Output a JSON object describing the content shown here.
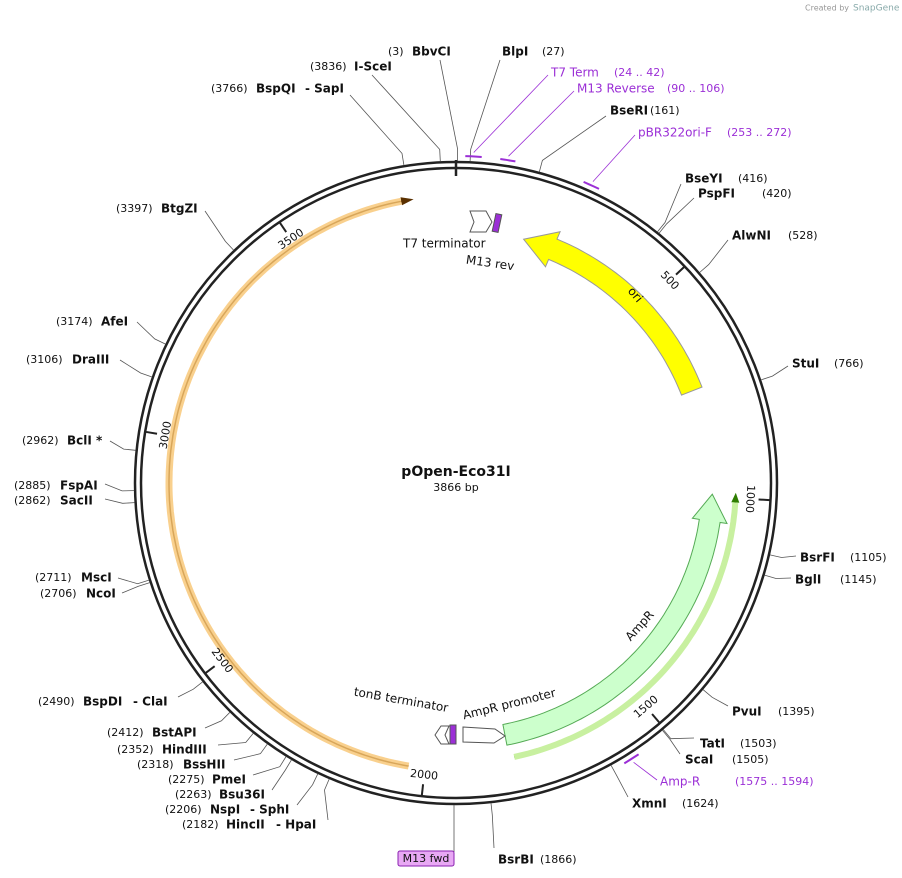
{
  "header": {
    "credit": "Created by",
    "brand": "SnapGene"
  },
  "plasmid": {
    "name": "pOpen-Eco31I",
    "length": "3866 bp"
  },
  "ring_ticks": [
    500,
    1000,
    1500,
    2000,
    2500,
    3000,
    3500
  ],
  "sites": [
    {
      "name": "BbvCI",
      "position": "(3)"
    },
    {
      "name": "BlpI",
      "position": "(27)"
    },
    {
      "name": "I-SceI",
      "position": "(3836)"
    },
    {
      "name": "BspQI",
      "alias": "- SapI",
      "position": "(3766)"
    },
    {
      "name": "BseRI",
      "position": "(161)"
    },
    {
      "name": "BseYI",
      "position": "(416)"
    },
    {
      "name": "PspFI",
      "position": "(420)"
    },
    {
      "name": "AlwNI",
      "position": "(528)"
    },
    {
      "name": "StuI",
      "position": "(766)"
    },
    {
      "name": "BsrFI",
      "position": "(1105)"
    },
    {
      "name": "BglI",
      "position": "(1145)"
    },
    {
      "name": "PvuI",
      "position": "(1395)"
    },
    {
      "name": "TatI",
      "position": "(1503)"
    },
    {
      "name": "ScaI",
      "position": "(1505)"
    },
    {
      "name": "XmnI",
      "position": "(1624)"
    },
    {
      "name": "BsrBI",
      "position": "(1866)"
    },
    {
      "name": "BtgZI",
      "position": "(3397)"
    },
    {
      "name": "AfeI",
      "position": "(3174)"
    },
    {
      "name": "DraIII",
      "position": "(3106)"
    },
    {
      "name": "BclI *",
      "position": "(2962)"
    },
    {
      "name": "FspAI",
      "position": "(2885)"
    },
    {
      "name": "SacII",
      "position": "(2862)"
    },
    {
      "name": "MscI",
      "position": "(2711)"
    },
    {
      "name": "NcoI",
      "position": "(2706)"
    },
    {
      "name": "BspDI",
      "alias": "- ClaI",
      "position": "(2490)"
    },
    {
      "name": "BstAPI",
      "position": "(2412)"
    },
    {
      "name": "HindIII",
      "position": "(2352)"
    },
    {
      "name": "BssHII",
      "position": "(2318)"
    },
    {
      "name": "PmeI",
      "position": "(2275)"
    },
    {
      "name": "Bsu36I",
      "position": "(2263)"
    },
    {
      "name": "NspI",
      "alias": "- SphI",
      "position": "(2206)"
    },
    {
      "name": "HincII",
      "alias": "- HpaI",
      "position": "(2182)"
    }
  ],
  "primers": [
    {
      "name": "T7 Term",
      "range": "(24 .. 42)"
    },
    {
      "name": "M13 Reverse",
      "range": "(90 .. 106)"
    },
    {
      "name": "pBR322ori-F",
      "range": "(253 .. 272)"
    },
    {
      "name": "Amp-R",
      "range": "(1575 .. 1594)"
    },
    {
      "name": "M13 fwd"
    }
  ],
  "features": [
    {
      "name": "ori"
    },
    {
      "name": "AmpR"
    },
    {
      "name": "AmpR promoter"
    },
    {
      "name": "tonB terminator"
    },
    {
      "name": "T7 terminator"
    },
    {
      "name": "M13 rev"
    }
  ]
}
